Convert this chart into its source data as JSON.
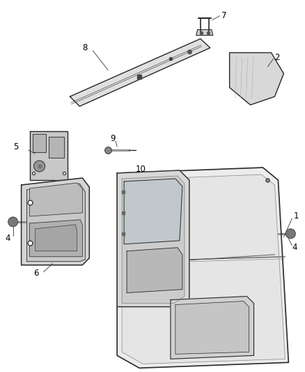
{
  "background_color": "#ffffff",
  "line_color": "#2a2a2a",
  "fill_light": "#e8e8e8",
  "fill_mid": "#d0d0d0",
  "fill_dark": "#b0b0b0",
  "figsize": [
    4.38,
    5.33
  ],
  "dpi": 100,
  "label_fontsize": 8.5
}
